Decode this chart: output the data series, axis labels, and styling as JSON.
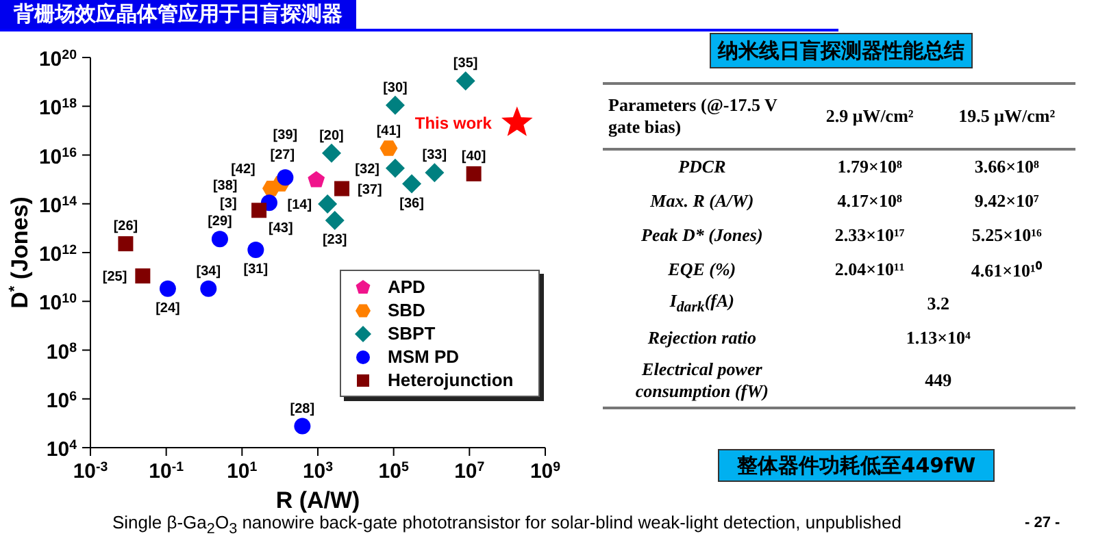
{
  "chart_data": [
    {
      "type": "scatter",
      "title": "背栅场效应晶体管应用于日盲探测器",
      "xlabel": "R (A/W)",
      "ylabel": "D$^{*}$ (Jones)",
      "log": "xy",
      "legend": "bottom right",
      "xlim": [
        0.001,
        1000000000
      ],
      "xticks": [
        {
          "value": 0.001,
          "label": "10$^{-3}$"
        },
        {
          "value": 0.1,
          "label": "10$^{-1}$"
        },
        {
          "value": 10,
          "label": "10$^{1}$"
        },
        {
          "value": 1000,
          "label": "10$^{3}$"
        },
        {
          "value": 100000,
          "label": "10$^{5}$"
        },
        {
          "value": 10000000,
          "label": "10$^{7}$"
        },
        {
          "value": 1000000000,
          "label": "10$^{9}$"
        }
      ],
      "ylim": [
        10000,
        1e+20
      ],
      "yticks": [
        {
          "value": 10000,
          "label": "10$^{4}$"
        },
        {
          "value": 1000000,
          "label": "10$^{6}$"
        },
        {
          "value": 100000000,
          "label": "10$^{8}$"
        },
        {
          "value": 10000000000,
          "label": "10$^{10}$"
        },
        {
          "value": 1000000000000,
          "label": "10$^{12}$"
        },
        {
          "value": 100000000000000.0,
          "label": "10$^{14}$"
        },
        {
          "value": 1e+16,
          "label": "10$^{16}$"
        },
        {
          "value": 1e+18,
          "label": "10$^{18}$"
        },
        {
          "value": 1e+20,
          "label": "10$^{20}$"
        }
      ],
      "series": [
        {
          "name": "APD",
          "color": "#f0148c",
          "x": [
            910
          ],
          "values": [
            950000000000000.0
          ]
        },
        {
          "name": "SBD",
          "color": "#ff8000",
          "x": [
            59,
            105,
            74000
          ],
          "values": [
            430000000000000.0,
            660000000000000.0,
            1.9e+16
          ]
        },
        {
          "name": "SBPT",
          "color": "#008080",
          "marker": "diamond",
          "x": [
            2300,
            1800,
            2800,
            110000,
            110000,
            300000,
            1200000,
            7900000
          ],
          "values": [
            1.2e+16,
            98000000000000.0,
            21000000000000.0,
            1.1e+18,
            2900000000000000.0,
            660000000000000.0,
            1900000000000000.0,
            1.1e+19
          ]
        },
        {
          "name": "MSM PD",
          "color": "#0000ff",
          "marker": "circle",
          "x": [
            0.11,
            1.3,
            2.6,
            23,
            52,
            138,
            390
          ],
          "values": [
            33000000000.0,
            33000000000.0,
            3600000000000.0,
            1300000000000.0,
            110000000000000.0,
            1200000000000000.0,
            76000
          ]
        },
        {
          "name": "Heterojunction",
          "color": "#800000",
          "marker": "square",
          "x": [
            0.0085,
            0.024,
            28,
            4300,
            13000000
          ],
          "values": [
            2300000000000.0,
            110000000000.0,
            54000000000000.0,
            420000000000000.0,
            1700000000000000.0
          ]
        },
        {
          "color": "#ff0000",
          "marker": "star",
          "x": [
            180000000
          ],
          "values": [
            2.1e+17
          ]
        }
      ],
      "annotations": [
        "Single β-Ga$_{2}$O$_{3}$ nanowire back-gate phototransistor for solar-blind weak-light detection, unpublished",
        "- 27 -",
        {
          "text": "[27]",
          "x": 910,
          "y": 950000000000000.0
        },
        {
          "text": "[42]",
          "x": 59,
          "y": 430000000000000.0
        },
        {
          "text": "[43]",
          "x": 105,
          "y": 660000000000000.0
        },
        {
          "text": "[41]",
          "x": 74000,
          "y": 1.9e+16
        },
        {
          "text": "[20]",
          "x": 2300,
          "y": 1.2e+16
        },
        {
          "text": "[14]",
          "x": 1800,
          "y": 98000000000000.0
        },
        {
          "text": "[23]",
          "x": 2800,
          "y": 21000000000000.0
        },
        {
          "text": "[30]",
          "x": 110000,
          "y": 1.1e+18
        },
        {
          "text": "[32]",
          "x": 110000,
          "y": 2900000000000000.0
        },
        {
          "text": "[36]",
          "x": 300000,
          "y": 660000000000000.0
        },
        {
          "text": "[33]",
          "x": 1200000,
          "y": 1900000000000000.0
        },
        {
          "text": "[35]",
          "x": 7900000,
          "y": 1.1e+19
        },
        {
          "text": "[24]",
          "x": 0.11,
          "y": 33000000000.0
        },
        {
          "text": "[34]",
          "x": 1.3,
          "y": 33000000000.0
        },
        {
          "text": "[29]",
          "x": 2.6,
          "y": 3600000000000.0
        },
        {
          "text": "[31]",
          "x": 23,
          "y": 1300000000000.0
        },
        {
          "text": "[3]",
          "x": 52,
          "y": 110000000000000.0
        },
        {
          "text": "[39]",
          "x": 138,
          "y": 1200000000000000.0
        },
        {
          "text": "[28]",
          "x": 390,
          "y": 76000
        },
        {
          "text": "[26]",
          "x": 0.0085,
          "y": 2300000000000.0
        },
        {
          "text": "[25]",
          "x": 0.024,
          "y": 110000000000.0
        },
        {
          "text": "[38]",
          "x": 28,
          "y": 54000000000000.0
        },
        {
          "text": "[37]",
          "x": 4300,
          "y": 420000000000000.0
        },
        {
          "text": "[40]",
          "x": 13000000,
          "y": 1700000000000000.0
        },
        {
          "text": "This work",
          "x": 180000000,
          "y": 2.1e+17
        }
      ]
    },
    {
      "type": "other",
      "title": "纳米线日盲探测器性能总结",
      "annotations": [
        "Parameters (@-17.5 V gate bias)\t2.9 μW/cm²\t19.5 μW/cm²",
        "PDCR\t1.79×10⁸\t3.66×10⁸",
        "Max. R (A/W)\t4.17×10⁸\t9.42×10⁷",
        "Peak D* (Jones)\t2.33×10¹⁷\t5.25×10¹⁶",
        "EQE (%)\t2.04×10¹¹\t4.61×10¹⁰",
        "I$_{dark}$(fA)\t3.2",
        "Rejection ratio\t1.13×10⁴",
        "Electrical power consumption (fW)\t449",
        "整体器件功耗低至449fW"
      ]
    }
  ]
}
